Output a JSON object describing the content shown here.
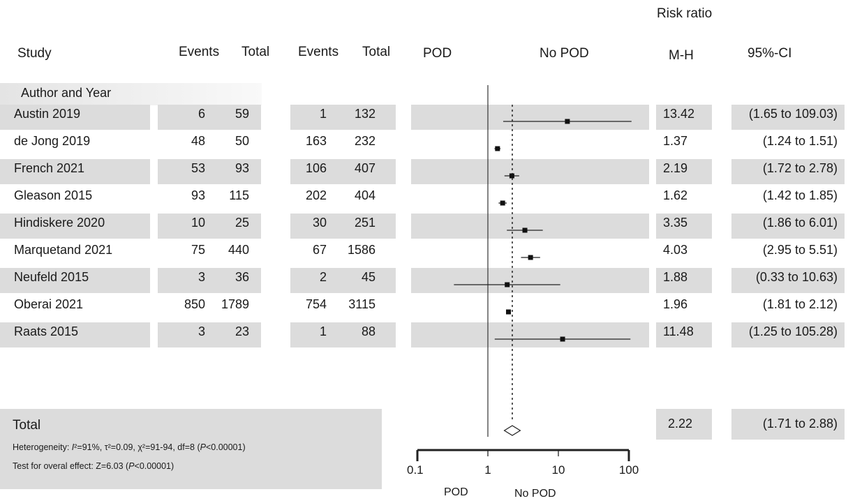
{
  "header": {
    "risk_ratio": "Risk ratio",
    "study": "Study",
    "events_pod": "Events",
    "total_pod": "Total",
    "events_nopod": "Events",
    "total_nopod": "Total",
    "pod": "POD",
    "no_pod": "No POD",
    "mh": "M-H",
    "ci": "95%-CI",
    "author_year": "Author and Year"
  },
  "total": {
    "label": "Total",
    "heterogeneity": "Heterogeneity: I²=91%, τ²=0.09, χ²=91-94, df=8 (P<0.00001)",
    "overall_effect": "Test for overal effect: Z=6.03 (P<0.00001)",
    "rr": "2.22",
    "ci": "(1.71 to 2.88)"
  },
  "axis_labels": {
    "pod": "POD",
    "no_pod": "No POD"
  },
  "chart_data": {
    "type": "forest",
    "x_scale": "log",
    "xlim": [
      0.1,
      100
    ],
    "ticks": [
      "0.1",
      "1",
      "10",
      "100"
    ],
    "reference_line": 1,
    "pooled_line": 2.22,
    "studies": [
      {
        "study": "Austin 2019",
        "events_pod": "6",
        "total_pod": "59",
        "events_nopod": "1",
        "total_nopod": "132",
        "rr": "13.42",
        "ci": "(1.65 to 109.03)",
        "rr_val": 13.42,
        "lo": 1.65,
        "hi": 109.03,
        "arrow_right": true
      },
      {
        "study": "de Jong 2019",
        "events_pod": "48",
        "total_pod": "50",
        "events_nopod": "163",
        "total_nopod": "232",
        "rr": "1.37",
        "ci": "(1.24 to 1.51)",
        "rr_val": 1.37,
        "lo": 1.24,
        "hi": 1.51
      },
      {
        "study": "French 2021",
        "events_pod": "53",
        "total_pod": "93",
        "events_nopod": "106",
        "total_nopod": "407",
        "rr": "2.19",
        "ci": "(1.72 to 2.78)",
        "rr_val": 2.19,
        "lo": 1.72,
        "hi": 2.78
      },
      {
        "study": "Gleason 2015",
        "events_pod": "93",
        "total_pod": "115",
        "events_nopod": "202",
        "total_nopod": "404",
        "rr": "1.62",
        "ci": "(1.42 to 1.85)",
        "rr_val": 1.62,
        "lo": 1.42,
        "hi": 1.85
      },
      {
        "study": "Hindiskere 2020",
        "events_pod": "10",
        "total_pod": "25",
        "events_nopod": "30",
        "total_nopod": "251",
        "rr": "3.35",
        "ci": "(1.86 to 6.01)",
        "rr_val": 3.35,
        "lo": 1.86,
        "hi": 6.01
      },
      {
        "study": "Marquetand 2021",
        "events_pod": "75",
        "total_pod": "440",
        "events_nopod": "67",
        "total_nopod": "1586",
        "rr": "4.03",
        "ci": "(2.95 to 5.51)",
        "rr_val": 4.03,
        "lo": 2.95,
        "hi": 5.51
      },
      {
        "study": "Neufeld 2015",
        "events_pod": "3",
        "total_pod": "36",
        "events_nopod": "2",
        "total_nopod": "45",
        "rr": "1.88",
        "ci": "(0.33 to 10.63)",
        "rr_val": 1.88,
        "lo": 0.33,
        "hi": 10.63
      },
      {
        "study": "Oberai 2021",
        "events_pod": "850",
        "total_pod": "1789",
        "events_nopod": "754",
        "total_nopod": "3115",
        "rr": "1.96",
        "ci": "(1.81 to 2.12)",
        "rr_val": 1.96,
        "lo": 1.81,
        "hi": 2.12
      },
      {
        "study": "Raats 2015",
        "events_pod": "3",
        "total_pod": "23",
        "events_nopod": "1",
        "total_nopod": "88",
        "rr": "11.48",
        "ci": "(1.25 to 105.28)",
        "rr_val": 11.48,
        "lo": 1.25,
        "hi": 105.28,
        "arrow_right": true
      }
    ],
    "pooled": {
      "rr_val": 2.22,
      "lo": 1.71,
      "hi": 2.88
    }
  }
}
